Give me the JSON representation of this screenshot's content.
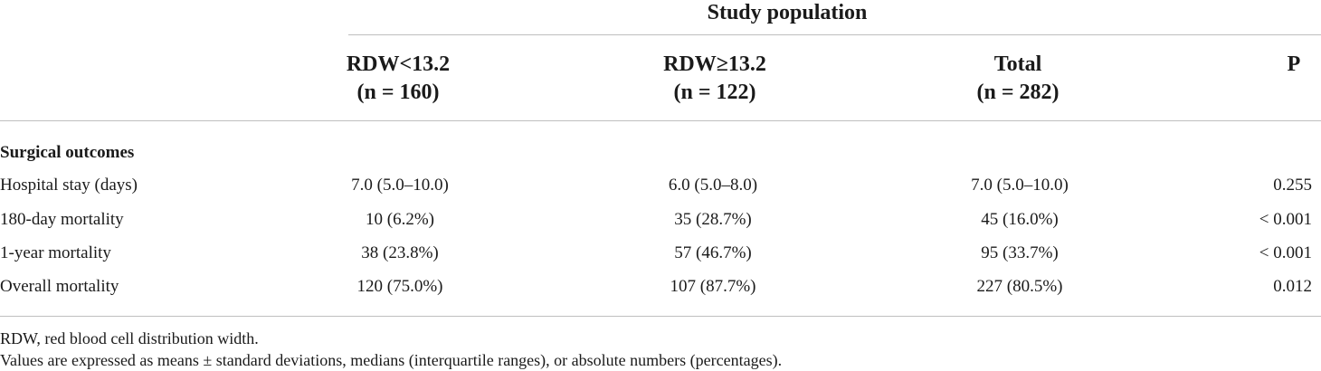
{
  "table": {
    "group_header": "Study population",
    "columns": [
      {
        "line1": "RDW<13.2",
        "line2": "(n = 160)"
      },
      {
        "line1": "RDW≥13.2",
        "line2": "(n = 122)"
      },
      {
        "line1": "Total",
        "line2": "(n = 282)"
      },
      {
        "line1": "P",
        "line2": ""
      }
    ],
    "section_label": "Surgical outcomes",
    "rows": [
      {
        "label": "Hospital stay (days)",
        "low": "7.0 (5.0–10.0)",
        "high": "6.0 (5.0–8.0)",
        "total": "7.0 (5.0–10.0)",
        "p": "0.255"
      },
      {
        "label": "180-day mortality",
        "low": "10 (6.2%)",
        "high": "35 (28.7%)",
        "total": "45 (16.0%)",
        "p": "< 0.001"
      },
      {
        "label": "1-year mortality",
        "low": "38 (23.8%)",
        "high": "57 (46.7%)",
        "total": "95 (33.7%)",
        "p": "< 0.001"
      },
      {
        "label": "Overall mortality",
        "low": "120 (75.0%)",
        "high": "107 (87.7%)",
        "total": "227 (80.5%)",
        "p": "0.012"
      }
    ]
  },
  "footnotes": [
    "RDW, red blood cell distribution width.",
    "Values are expressed as means ± standard deviations, medians (interquartile ranges), or absolute numbers (percentages)."
  ]
}
